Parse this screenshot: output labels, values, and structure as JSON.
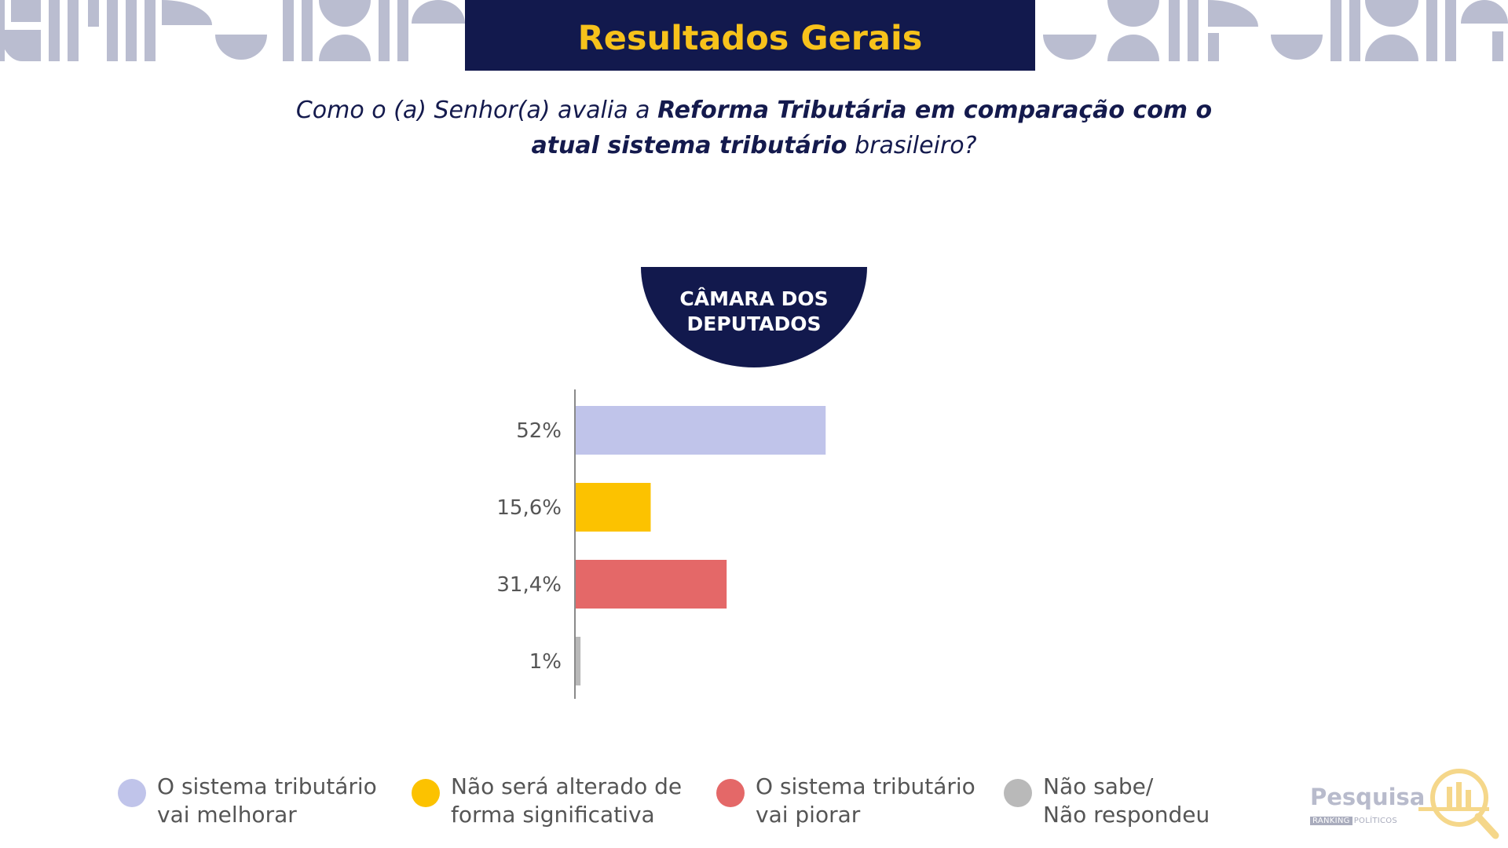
{
  "header": {
    "title": "Resultados Gerais"
  },
  "question": {
    "part1": "Como o (a) Senhor(a) avalia a ",
    "bold1": "Reforma Tributária em comparação com o atual sistema tributário",
    "part2": " brasileiro?"
  },
  "chamber_label": "CÂMARA DOS DEPUTADOS",
  "chart_data": {
    "type": "bar",
    "orientation": "horizontal",
    "categories": [
      "O sistema tributário vai melhorar",
      "Não será alterado de forma significativa",
      "O sistema tributário vai piorar",
      "Não sabe/ Não respondeu"
    ],
    "values": [
      52,
      15.6,
      31.4,
      1
    ],
    "value_labels": [
      "52%",
      "15,6%",
      "31,4%",
      "1%"
    ],
    "colors": [
      "#c0c4ea",
      "#fcc200",
      "#e46868",
      "#b9b9b9"
    ],
    "xlim": [
      0,
      100
    ],
    "grid": false,
    "legend_position": "bottom"
  },
  "legend": [
    {
      "label": "O sistema tributário\nvai melhorar",
      "color": "#c0c4ea"
    },
    {
      "label": "Não será alterado de\nforma significativa",
      "color": "#fcc200"
    },
    {
      "label": "O sistema tributário\nvai piorar",
      "color": "#e46868"
    },
    {
      "label": "Não sabe/\nNão respondeu",
      "color": "#b9b9b9"
    }
  ],
  "logo": {
    "word": "Pesquisa",
    "tag": "RANKING",
    "sub": "POLÍTICOS",
    "icon": "magnifier-bars-icon"
  },
  "colors": {
    "navy": "#12194d",
    "gold": "#f7c21b",
    "deco": "#babdd0"
  }
}
